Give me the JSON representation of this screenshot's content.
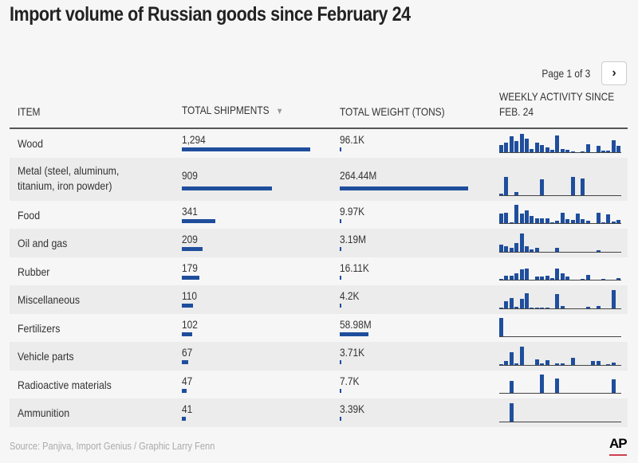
{
  "chart_data": {
    "type": "table",
    "title": "Import volume of Russian goods since February 24",
    "pagination": "Page 1 of 3",
    "columns": [
      "ITEM",
      "TOTAL SHIPMENTS",
      "TOTAL WEIGHT (TONS)",
      "WEEKLY ACTIVITY SINCE FEB. 24"
    ],
    "sort_indicator": "▼",
    "sorted_by": "TOTAL SHIPMENTS",
    "sort_order": "descending",
    "bar_color": "#1f4e9c",
    "rows": [
      {
        "item": "Wood",
        "shipments": 1294,
        "shipments_label": "1,294",
        "weight": 96100,
        "weight_label": "96.1K",
        "weekly": [
          9,
          12,
          20,
          14,
          23,
          17,
          4,
          12,
          9,
          6,
          3,
          21,
          4,
          3,
          1,
          0,
          1,
          10,
          0,
          8,
          2,
          2,
          15,
          8
        ]
      },
      {
        "item": "Metal (steel, aluminum, titanium, iron powder)",
        "shipments": 909,
        "shipments_label": "909",
        "weight": 264440000,
        "weight_label": "264.44M",
        "weekly": [
          2,
          23,
          0,
          4,
          0,
          0,
          0,
          0,
          20,
          0,
          0,
          0,
          0,
          0,
          23,
          0,
          21,
          0,
          0,
          0,
          0,
          0,
          0,
          0
        ]
      },
      {
        "item": "Food",
        "shipments": 341,
        "shipments_label": "341",
        "weight": 9970,
        "weight_label": "9.97K",
        "weekly": [
          12,
          13,
          1,
          23,
          12,
          16,
          9,
          6,
          6,
          6,
          1,
          3,
          13,
          5,
          4,
          12,
          5,
          3,
          0,
          13,
          1,
          11,
          2,
          4
        ]
      },
      {
        "item": "Oil and gas",
        "shipments": 209,
        "shipments_label": "209",
        "weight": 3190000,
        "weight_label": "3.19M",
        "weekly": [
          9,
          7,
          5,
          11,
          23,
          7,
          3,
          5,
          0,
          0,
          0,
          5,
          0,
          0,
          0,
          0,
          0,
          0,
          0,
          2,
          0,
          0,
          0,
          0
        ]
      },
      {
        "item": "Rubber",
        "shipments": 179,
        "shipments_label": "179",
        "weight": 16110,
        "weight_label": "16.11K",
        "weekly": [
          1,
          5,
          5,
          8,
          13,
          14,
          0,
          4,
          4,
          5,
          2,
          14,
          8,
          4,
          0,
          0,
          1,
          6,
          0,
          0,
          1,
          0,
          0,
          2
        ]
      },
      {
        "item": "Miscellaneous",
        "shipments": 110,
        "shipments_label": "110",
        "weight": 4200,
        "weight_label": "4.2K",
        "weekly": [
          1,
          9,
          13,
          2,
          12,
          19,
          1,
          1,
          1,
          1,
          0,
          18,
          3,
          0,
          0,
          0,
          0,
          2,
          0,
          3,
          0,
          0,
          23,
          0
        ]
      },
      {
        "item": "Fertilizers",
        "shipments": 102,
        "shipments_label": "102",
        "weight": 58980000,
        "weight_label": "58.98M",
        "weekly": [
          23,
          0,
          0,
          0,
          0,
          0,
          0,
          0,
          0,
          0,
          0,
          0,
          0,
          0,
          0,
          0,
          0,
          0,
          0,
          0,
          0,
          0,
          0,
          0
        ]
      },
      {
        "item": "Vehicle parts",
        "shipments": 67,
        "shipments_label": "67",
        "weight": 3710,
        "weight_label": "3.71K",
        "weekly": [
          1,
          5,
          16,
          2,
          23,
          0,
          0,
          7,
          2,
          6,
          0,
          2,
          2,
          0,
          9,
          0,
          0,
          0,
          5,
          5,
          0,
          1,
          3,
          0
        ]
      },
      {
        "item": "Radioactive materials",
        "shipments": 47,
        "shipments_label": "47",
        "weight": 7700,
        "weight_label": "7.7K",
        "weekly": [
          0,
          0,
          15,
          0,
          0,
          0,
          0,
          0,
          23,
          0,
          0,
          18,
          0,
          0,
          0,
          0,
          0,
          0,
          0,
          0,
          0,
          0,
          17,
          0
        ]
      },
      {
        "item": "Ammunition",
        "shipments": 41,
        "shipments_label": "41",
        "weight": 3390,
        "weight_label": "3.39K",
        "weekly": [
          0,
          0,
          23,
          0,
          0,
          0,
          0,
          0,
          0,
          0,
          0,
          0,
          0,
          0,
          0,
          0,
          0,
          0,
          0,
          0,
          0,
          0,
          0,
          0
        ]
      }
    ]
  },
  "footer": {
    "source": "Source: Panjiva, Import Genius / Graphic Larry Fenn",
    "logo": "AP"
  },
  "icons": {
    "next": "chevron-right-icon"
  }
}
